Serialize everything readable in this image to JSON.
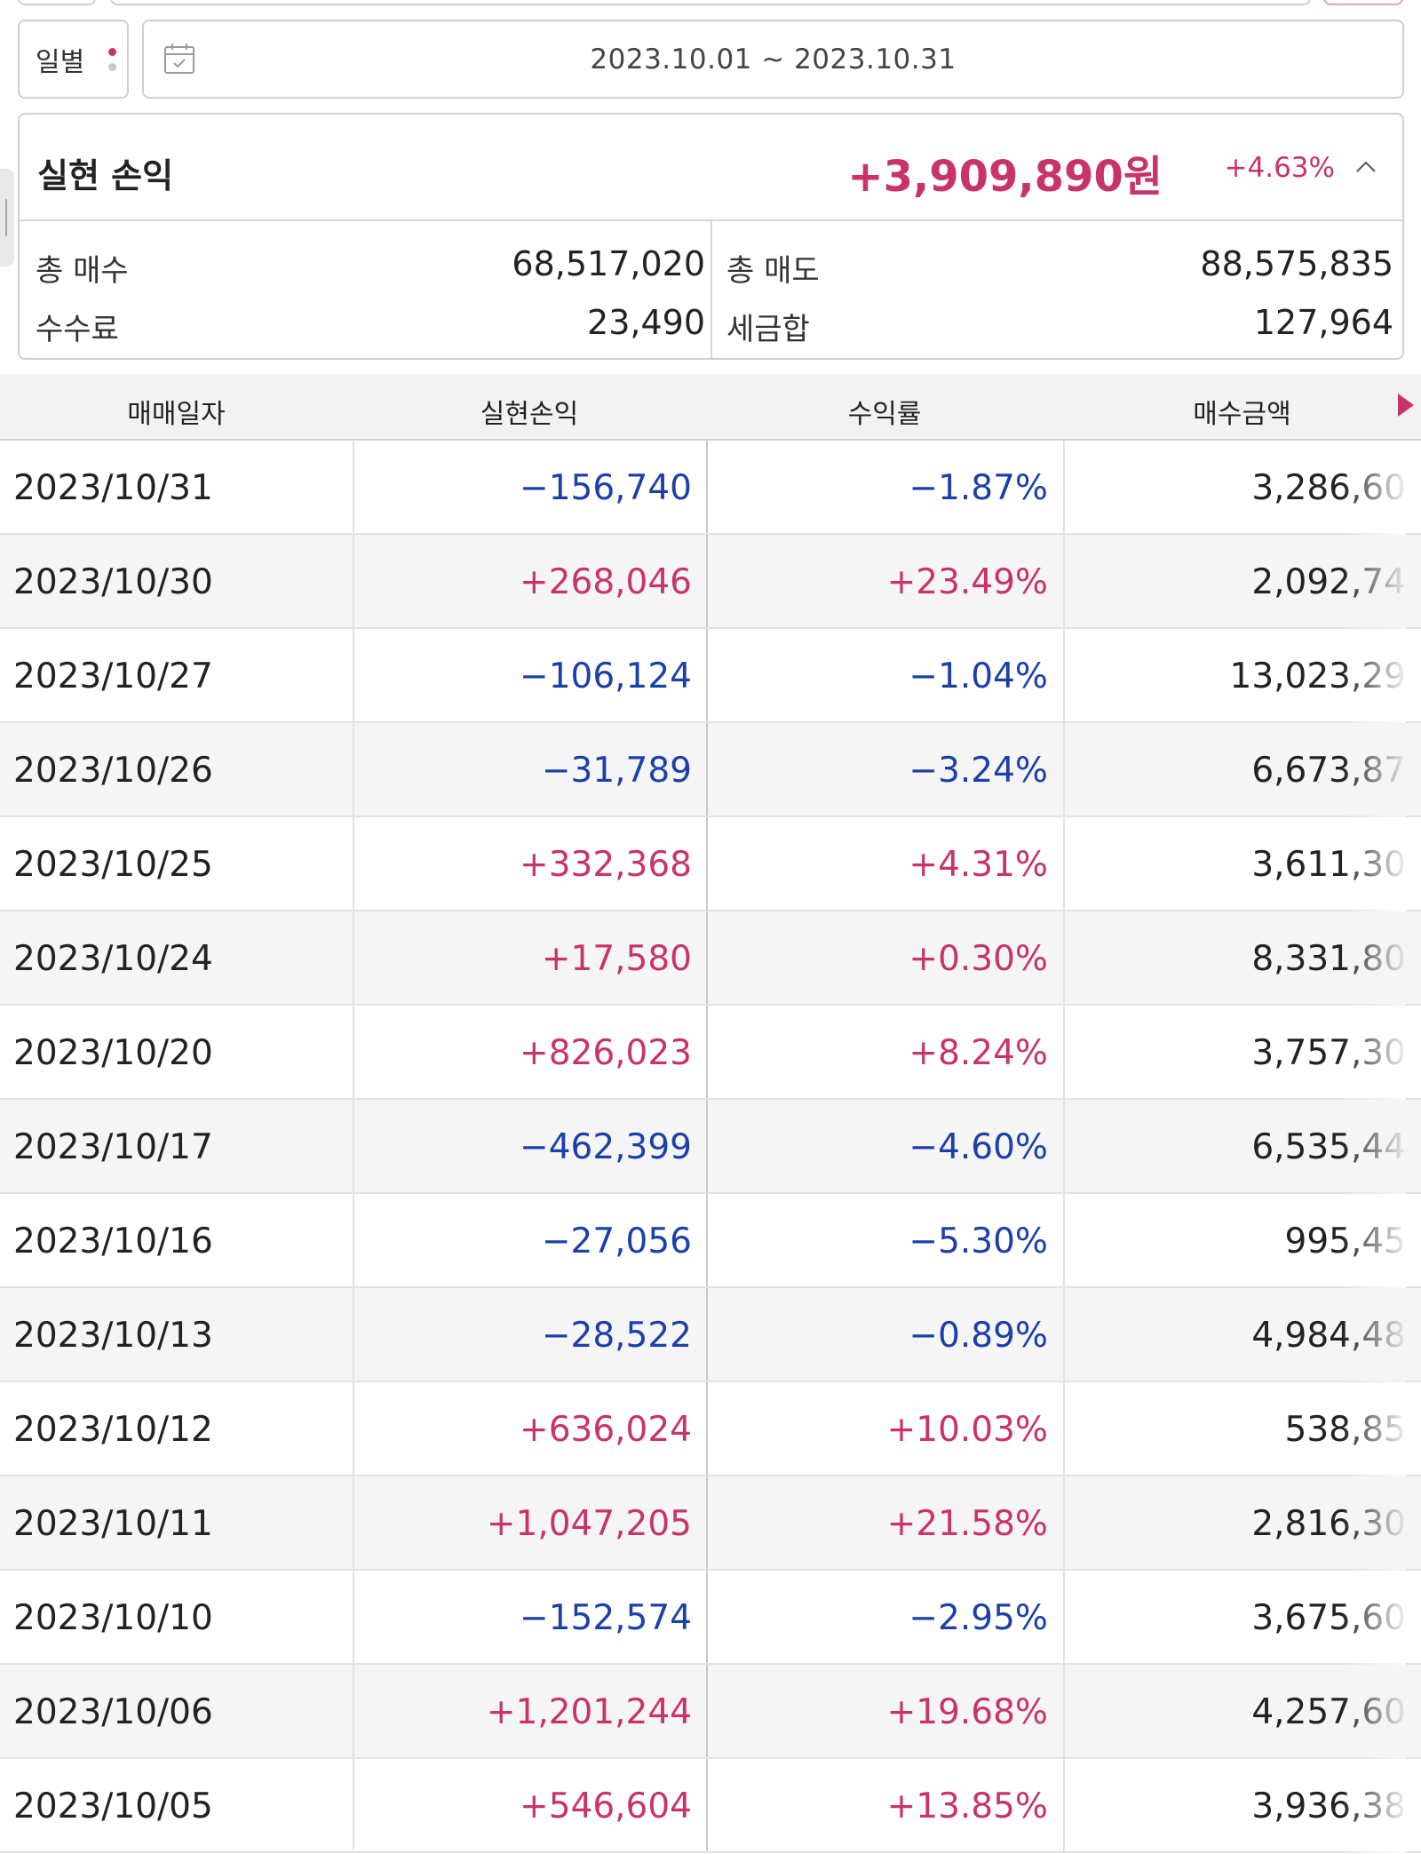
{
  "filter": {
    "period_label": "일별",
    "date_range": "2023.10.01 ~ 2023.10.31"
  },
  "summary": {
    "title": "실현 손익",
    "amount": "+3,909,890원",
    "rate": "+4.63%",
    "total_buy_label": "총 매수",
    "total_buy_value": "68,517,020",
    "total_sell_label": "총 매도",
    "total_sell_value": "88,575,835",
    "fee_label": "수수료",
    "fee_value": "23,490",
    "tax_label": "세금합",
    "tax_value": "127,964"
  },
  "table": {
    "headers": [
      "매매일자",
      "실현손익",
      "수익률",
      "매수금액"
    ],
    "rows": [
      {
        "date": "2023/10/31",
        "pnl": "−156,740",
        "rate": "−1.87%",
        "buy": "3,286,60",
        "sign": "neg"
      },
      {
        "date": "2023/10/30",
        "pnl": "+268,046",
        "rate": "+23.49%",
        "buy": "2,092,74",
        "sign": "pos"
      },
      {
        "date": "2023/10/27",
        "pnl": "−106,124",
        "rate": "−1.04%",
        "buy": "13,023,29",
        "sign": "neg"
      },
      {
        "date": "2023/10/26",
        "pnl": "−31,789",
        "rate": "−3.24%",
        "buy": "6,673,87",
        "sign": "neg"
      },
      {
        "date": "2023/10/25",
        "pnl": "+332,368",
        "rate": "+4.31%",
        "buy": "3,611,30",
        "sign": "pos"
      },
      {
        "date": "2023/10/24",
        "pnl": "+17,580",
        "rate": "+0.30%",
        "buy": "8,331,80",
        "sign": "pos"
      },
      {
        "date": "2023/10/20",
        "pnl": "+826,023",
        "rate": "+8.24%",
        "buy": "3,757,30",
        "sign": "pos"
      },
      {
        "date": "2023/10/17",
        "pnl": "−462,399",
        "rate": "−4.60%",
        "buy": "6,535,44",
        "sign": "neg"
      },
      {
        "date": "2023/10/16",
        "pnl": "−27,056",
        "rate": "−5.30%",
        "buy": "995,45",
        "sign": "neg"
      },
      {
        "date": "2023/10/13",
        "pnl": "−28,522",
        "rate": "−0.89%",
        "buy": "4,984,48",
        "sign": "neg"
      },
      {
        "date": "2023/10/12",
        "pnl": "+636,024",
        "rate": "+10.03%",
        "buy": "538,85",
        "sign": "pos"
      },
      {
        "date": "2023/10/11",
        "pnl": "+1,047,205",
        "rate": "+21.58%",
        "buy": "2,816,30",
        "sign": "pos"
      },
      {
        "date": "2023/10/10",
        "pnl": "−152,574",
        "rate": "−2.95%",
        "buy": "3,675,60",
        "sign": "neg"
      },
      {
        "date": "2023/10/06",
        "pnl": "+1,201,244",
        "rate": "+19.68%",
        "buy": "4,257,60",
        "sign": "pos"
      },
      {
        "date": "2023/10/05",
        "pnl": "+546,604",
        "rate": "+13.85%",
        "buy": "3,936,38",
        "sign": "pos"
      }
    ]
  },
  "colors": {
    "positive": "#c8336b",
    "negative": "#1c40a8",
    "header_bg": "#f2f2f2",
    "stripe_bg": "#f5f5f5"
  },
  "icons": {
    "calendar": "calendar-icon",
    "collapse": "chevron-up-icon",
    "scroll_right": "triangle-right-icon",
    "period_more": "more-dots-icon"
  }
}
